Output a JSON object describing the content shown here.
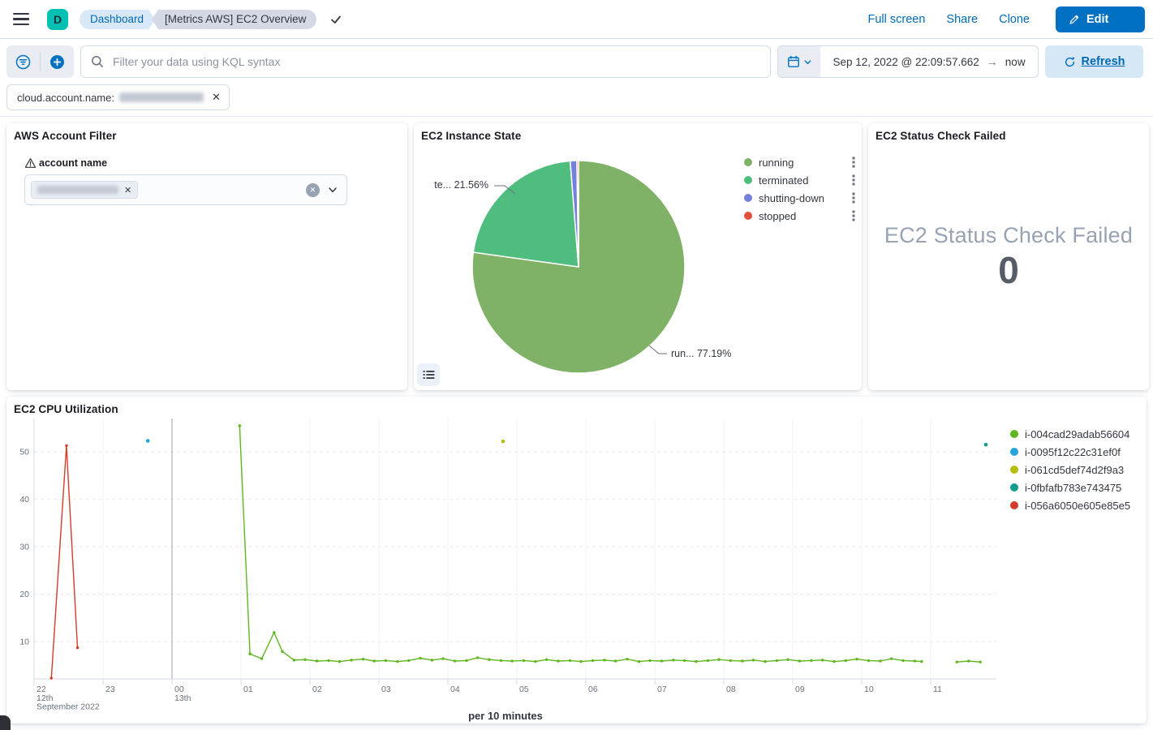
{
  "header": {
    "space_initial": "D",
    "breadcrumbs": [
      {
        "label": "Dashboard"
      },
      {
        "label": "[Metrics AWS] EC2 Overview"
      }
    ],
    "actions": [
      "Full screen",
      "Share",
      "Clone"
    ],
    "edit_label": "Edit"
  },
  "query_bar": {
    "placeholder": "Filter your data using KQL syntax",
    "date_start": "Sep 12, 2022 @ 22:09:57.662",
    "date_end": "now",
    "refresh_label": "Refresh"
  },
  "filter_pill": {
    "field": "cloud.account.name:",
    "value_redacted": true
  },
  "panels": {
    "account_filter": {
      "title": "AWS Account Filter",
      "control_label": "account name",
      "value_redacted": true
    },
    "status_check": {
      "title": "EC2 Status Check Failed",
      "metric_label": "EC2 Status Check Failed",
      "metric_value": "0"
    }
  },
  "colors": {
    "primary": "#0071C2",
    "link": "#006BB4",
    "border": "#D3DAE6",
    "text": "#343741",
    "subdued": "#69707D"
  },
  "chart_data": [
    {
      "type": "pie",
      "title": "EC2 Instance State",
      "legend_position": "right",
      "slices": [
        {
          "label": "running",
          "value": 77.19,
          "color": "#7FB266"
        },
        {
          "label": "terminated",
          "value": 21.56,
          "color": "#4EBD7D"
        },
        {
          "label": "shutting-down",
          "value": 1.0,
          "color": "#7580DB"
        },
        {
          "label": "stopped",
          "value": 0.25,
          "color": "#E0503A"
        }
      ],
      "callouts": {
        "left": "te... 21.56%",
        "right": "run... 77.19%"
      }
    },
    {
      "type": "line",
      "title": "EC2 CPU Utilization",
      "xlabel": "per 10 minutes",
      "ylim": [
        2,
        57
      ],
      "yticks": [
        10,
        20,
        30,
        40,
        50
      ],
      "x_axis_note": "t = hours after Sep 12 2022 22:00",
      "xticks": [
        {
          "t": 0,
          "label": "22",
          "sub": [
            "12th",
            "September 2022"
          ]
        },
        {
          "t": 1,
          "label": "23"
        },
        {
          "t": 2,
          "label": "00",
          "sub": [
            "13th"
          ]
        },
        {
          "t": 3,
          "label": "01"
        },
        {
          "t": 4,
          "label": "02"
        },
        {
          "t": 5,
          "label": "03"
        },
        {
          "t": 6,
          "label": "04"
        },
        {
          "t": 7,
          "label": "05"
        },
        {
          "t": 8,
          "label": "06"
        },
        {
          "t": 9,
          "label": "07"
        },
        {
          "t": 10,
          "label": "08"
        },
        {
          "t": 11,
          "label": "09"
        },
        {
          "t": 12,
          "label": "10"
        },
        {
          "t": 13,
          "label": "11"
        }
      ],
      "day_boundary_t": 2,
      "series": [
        {
          "name": "i-004cad29adab56604",
          "color": "#5FB61F",
          "segments": [
            [
              [
                2.98,
                55.5
              ],
              [
                3.13,
                7.4
              ],
              [
                3.3,
                6.4
              ],
              [
                3.48,
                11.9
              ],
              [
                3.6,
                7.9
              ],
              [
                3.77,
                6.1
              ],
              [
                3.93,
                6.2
              ],
              [
                4.1,
                5.9
              ],
              [
                4.27,
                6
              ],
              [
                4.43,
                5.8
              ],
              [
                4.6,
                6.1
              ],
              [
                4.77,
                6.3
              ],
              [
                4.93,
                5.9
              ],
              [
                5.1,
                6
              ],
              [
                5.27,
                5.8
              ],
              [
                5.43,
                6
              ],
              [
                5.6,
                6.5
              ],
              [
                5.77,
                6.1
              ],
              [
                5.93,
                6.4
              ],
              [
                6.1,
                5.9
              ],
              [
                6.27,
                6
              ],
              [
                6.43,
                6.6
              ],
              [
                6.6,
                6.2
              ],
              [
                6.77,
                6
              ],
              [
                6.93,
                5.9
              ],
              [
                7.1,
                6
              ],
              [
                7.27,
                5.8
              ],
              [
                7.43,
                6.2
              ],
              [
                7.6,
                5.9
              ],
              [
                7.77,
                6
              ],
              [
                7.93,
                5.8
              ],
              [
                8.1,
                6
              ],
              [
                8.27,
                6.1
              ],
              [
                8.43,
                5.9
              ],
              [
                8.6,
                6.3
              ],
              [
                8.77,
                5.8
              ],
              [
                8.93,
                6
              ],
              [
                9.1,
                5.9
              ],
              [
                9.27,
                6.1
              ],
              [
                9.43,
                6
              ],
              [
                9.6,
                5.8
              ],
              [
                9.77,
                6
              ],
              [
                9.93,
                6.2
              ],
              [
                10.1,
                6
              ],
              [
                10.27,
                5.9
              ],
              [
                10.43,
                6.1
              ],
              [
                10.6,
                5.8
              ],
              [
                10.77,
                6
              ],
              [
                10.93,
                6.2
              ],
              [
                11.1,
                5.9
              ],
              [
                11.27,
                6
              ],
              [
                11.43,
                6.1
              ],
              [
                11.6,
                5.8
              ],
              [
                11.77,
                6
              ],
              [
                11.93,
                6.3
              ],
              [
                12.1,
                6
              ],
              [
                12.27,
                5.9
              ],
              [
                12.43,
                6.4
              ],
              [
                12.6,
                6
              ],
              [
                12.77,
                5.9
              ],
              [
                12.87,
                5.8
              ]
            ],
            [
              [
                13.38,
                5.7
              ],
              [
                13.55,
                5.9
              ],
              [
                13.72,
                5.7
              ]
            ]
          ]
        },
        {
          "name": "i-0095f12c22c31ef0f",
          "color": "#27A3DB",
          "segments": [
            [
              [
                1.65,
                52.3
              ]
            ]
          ]
        },
        {
          "name": "i-061cd5def74d2f9a3",
          "color": "#B5BE0A",
          "segments": [
            [
              [
                6.8,
                52.2
              ]
            ]
          ]
        },
        {
          "name": "i-0fbfafb783e743475",
          "color": "#139E8C",
          "segments": [
            [
              [
                13.8,
                51.5
              ]
            ]
          ]
        },
        {
          "name": "i-056a6050e605e85e5",
          "color": "#D23C28",
          "segments": [
            [
              [
                0.25,
                2.3
              ],
              [
                0.47,
                51.3
              ],
              [
                0.63,
                8.7
              ]
            ]
          ]
        }
      ]
    }
  ]
}
